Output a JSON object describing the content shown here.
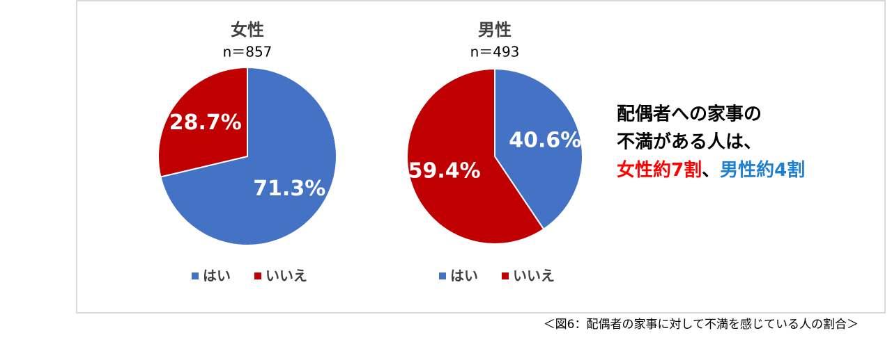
{
  "chart_data": [
    {
      "type": "pie",
      "title": "女性",
      "subtitle": "n＝857",
      "categories": [
        "はい",
        "いいえ"
      ],
      "series": [
        {
          "colors": [
            "#4472c4",
            "#c00000"
          ],
          "values": [
            71.3,
            28.7
          ],
          "value_labels": [
            "71.3%",
            "28.7%"
          ]
        }
      ]
    },
    {
      "type": "pie",
      "title": "男性",
      "subtitle": "n＝493",
      "categories": [
        "はい",
        "いいえ"
      ],
      "series": [
        {
          "colors": [
            "#4472c4",
            "#c00000"
          ],
          "values": [
            40.6,
            59.4
          ],
          "value_labels": [
            "40.6%",
            "59.4%"
          ]
        }
      ]
    }
  ],
  "callout": {
    "lines": [
      "配偶者への家事の",
      "不満がある人は、"
    ],
    "highlight": [
      {
        "text": "女性約7割",
        "color": "#ff0000"
      },
      {
        "text": "、",
        "color": "#000000"
      },
      {
        "text": "男性約4割",
        "color": "#1f7fd0"
      }
    ]
  },
  "caption": "＜図6：配偶者の家事に対して不満を感じている人の割合＞"
}
